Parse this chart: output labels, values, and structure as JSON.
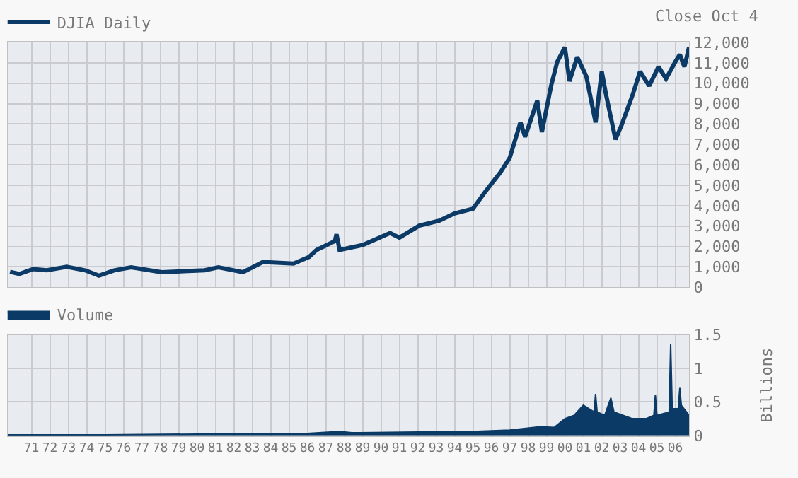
{
  "chart_data": [
    {
      "type": "line",
      "annotations": [
        "Close Oct 4"
      ],
      "legend": "top left",
      "grid": true,
      "tick_labels": "y",
      "series": [
        {
          "name": "DJIA Daily",
          "color": "#0b3a66",
          "x": [
            "1969-11",
            "1970-05",
            "1971-02",
            "1971-11",
            "1972-12",
            "1973-12",
            "1974-09",
            "1975-07",
            "1976-06",
            "1978-02",
            "1980-06",
            "1981-03",
            "1982-07",
            "1983-08",
            "1985-04",
            "1986-02",
            "1986-07",
            "1987-07",
            "1987-08",
            "1987-10",
            "1989-01",
            "1990-07",
            "1991-01",
            "1992-02",
            "1993-03",
            "1994-01",
            "1995-01",
            "1995-09",
            "1996-07",
            "1997-01",
            "1997-08",
            "1997-11",
            "1998-07",
            "1998-10",
            "1999-04",
            "1999-08",
            "2000-01",
            "2000-04",
            "2000-09",
            "2001-03",
            "2001-09",
            "2002-01",
            "2002-04",
            "2002-10",
            "2003-02",
            "2003-09",
            "2004-02",
            "2004-08",
            "2005-02",
            "2005-07",
            "2006-01",
            "2006-04",
            "2006-07",
            "2006-10"
          ],
          "values": [
            760,
            650,
            890,
            830,
            1000,
            830,
            570,
            830,
            980,
            740,
            830,
            980,
            740,
            1240,
            1160,
            1480,
            1830,
            2260,
            2600,
            1830,
            2070,
            2660,
            2430,
            3020,
            3260,
            3620,
            3850,
            4680,
            5640,
            6350,
            8080,
            7370,
            9150,
            7610,
            9870,
            11050,
            11760,
            10100,
            11290,
            10340,
            8080,
            10580,
            9390,
            7250,
            7960,
            9390,
            10580,
            9870,
            10810,
            10220,
            11050,
            11410,
            10810,
            11760
          ]
        }
      ],
      "xlim": [
        "1969-10",
        "2006-10"
      ],
      "xticks": [
        {
          "value": "1971",
          "label": null
        },
        {
          "value": "1972",
          "label": null
        },
        {
          "value": "1973",
          "label": null
        },
        {
          "value": "1974",
          "label": null
        },
        {
          "value": "1975",
          "label": null
        },
        {
          "value": "1976",
          "label": null
        },
        {
          "value": "1977",
          "label": null
        },
        {
          "value": "1978",
          "label": null
        },
        {
          "value": "1979",
          "label": null
        },
        {
          "value": "1980",
          "label": null
        },
        {
          "value": "1981",
          "label": null
        },
        {
          "value": "1982",
          "label": null
        },
        {
          "value": "1983",
          "label": null
        },
        {
          "value": "1984",
          "label": null
        },
        {
          "value": "1985",
          "label": null
        },
        {
          "value": "1986",
          "label": null
        },
        {
          "value": "1987",
          "label": null
        },
        {
          "value": "1988",
          "label": null
        },
        {
          "value": "1989",
          "label": null
        },
        {
          "value": "1990",
          "label": null
        },
        {
          "value": "1991",
          "label": null
        },
        {
          "value": "1992",
          "label": null
        },
        {
          "value": "1993",
          "label": null
        },
        {
          "value": "1994",
          "label": null
        },
        {
          "value": "1995",
          "label": null
        },
        {
          "value": "1996",
          "label": null
        },
        {
          "value": "1997",
          "label": null
        },
        {
          "value": "1998",
          "label": null
        },
        {
          "value": "1999",
          "label": null
        },
        {
          "value": "2000",
          "label": null
        },
        {
          "value": "2001",
          "label": null
        },
        {
          "value": "2002",
          "label": null
        },
        {
          "value": "2003",
          "label": null
        },
        {
          "value": "2004",
          "label": null
        },
        {
          "value": "2005",
          "label": null
        },
        {
          "value": "2006",
          "label": null
        }
      ],
      "ylim": [
        0,
        12000
      ],
      "yticks": [
        0,
        {
          "value": 1000,
          "label": "1,000"
        },
        {
          "value": 2000,
          "label": "2,000"
        },
        {
          "value": 3000,
          "label": "3,000"
        },
        {
          "value": 4000,
          "label": "4,000"
        },
        {
          "value": 5000,
          "label": "5,000"
        },
        {
          "value": 6000,
          "label": "6,000"
        },
        {
          "value": 7000,
          "label": "7,000"
        },
        {
          "value": 8000,
          "label": "8,000"
        },
        {
          "value": 9000,
          "label": "9,000"
        },
        {
          "value": 10000,
          "label": "10,000"
        },
        {
          "value": 11000,
          "label": "11,000"
        },
        {
          "value": 12000,
          "label": "12,000"
        }
      ]
    },
    {
      "type": "area",
      "ylabel": "Billions",
      "legend": "top left",
      "grid": true,
      "series": [
        {
          "name": "Volume",
          "color": "#0b3a66",
          "x": [
            "1969-10",
            "1975-01",
            "1980-01",
            "1984-01",
            "1986-01",
            "1987-10",
            "1988-06",
            "1992-01",
            "1995-01",
            "1997-01",
            "1998-09",
            "1999-06",
            "2000-01",
            "2000-07",
            "2001-01",
            "2001-08",
            "2001-09",
            "2001-10",
            "2002-03",
            "2002-07",
            "2002-09",
            "2003-03",
            "2003-09",
            "2004-06",
            "2004-11",
            "2004-12",
            "2005-01",
            "2005-09",
            "2005-10",
            "2005-11",
            "2006-03",
            "2006-04",
            "2006-05",
            "2006-10"
          ],
          "values": [
            0.01,
            0.01,
            0.02,
            0.02,
            0.03,
            0.06,
            0.04,
            0.05,
            0.06,
            0.08,
            0.13,
            0.12,
            0.25,
            0.3,
            0.45,
            0.35,
            0.62,
            0.35,
            0.3,
            0.56,
            0.35,
            0.3,
            0.25,
            0.25,
            0.3,
            0.6,
            0.3,
            0.35,
            1.36,
            0.4,
            0.4,
            0.71,
            0.45,
            0.3
          ]
        }
      ],
      "xlim": [
        "1969-10",
        "2006-10"
      ],
      "xticks": [
        {
          "value": "1971",
          "label": "71"
        },
        {
          "value": "1972",
          "label": "72"
        },
        {
          "value": "1973",
          "label": "73"
        },
        {
          "value": "1974",
          "label": "74"
        },
        {
          "value": "1975",
          "label": "75"
        },
        {
          "value": "1976",
          "label": "76"
        },
        {
          "value": "1977",
          "label": "77"
        },
        {
          "value": "1978",
          "label": "78"
        },
        {
          "value": "1979",
          "label": "79"
        },
        {
          "value": "1980",
          "label": "80"
        },
        {
          "value": "1981",
          "label": "81"
        },
        {
          "value": "1982",
          "label": "82"
        },
        {
          "value": "1983",
          "label": "83"
        },
        {
          "value": "1984",
          "label": "84"
        },
        {
          "value": "1985",
          "label": "85"
        },
        {
          "value": "1986",
          "label": "86"
        },
        {
          "value": "1987",
          "label": "87"
        },
        {
          "value": "1988",
          "label": "88"
        },
        {
          "value": "1989",
          "label": "89"
        },
        {
          "value": "1990",
          "label": "90"
        },
        {
          "value": "1991",
          "label": "91"
        },
        {
          "value": "1992",
          "label": "92"
        },
        {
          "value": "1993",
          "label": "93"
        },
        {
          "value": "1994",
          "label": "94"
        },
        {
          "value": "1995",
          "label": "95"
        },
        {
          "value": "1996",
          "label": "96"
        },
        {
          "value": "1997",
          "label": "97"
        },
        {
          "value": "1998",
          "label": "98"
        },
        {
          "value": "1999",
          "label": "99"
        },
        {
          "value": "2000",
          "label": "00"
        },
        {
          "value": "2001",
          "label": "01"
        },
        {
          "value": "2002",
          "label": "02"
        },
        {
          "value": "2003",
          "label": "03"
        },
        {
          "value": "2004",
          "label": "04"
        },
        {
          "value": "2005",
          "label": "05"
        },
        {
          "value": "2006",
          "label": "06"
        }
      ],
      "ylim": [
        0,
        1.5
      ],
      "yticks": [
        0,
        0.5,
        1,
        1.5
      ]
    }
  ]
}
